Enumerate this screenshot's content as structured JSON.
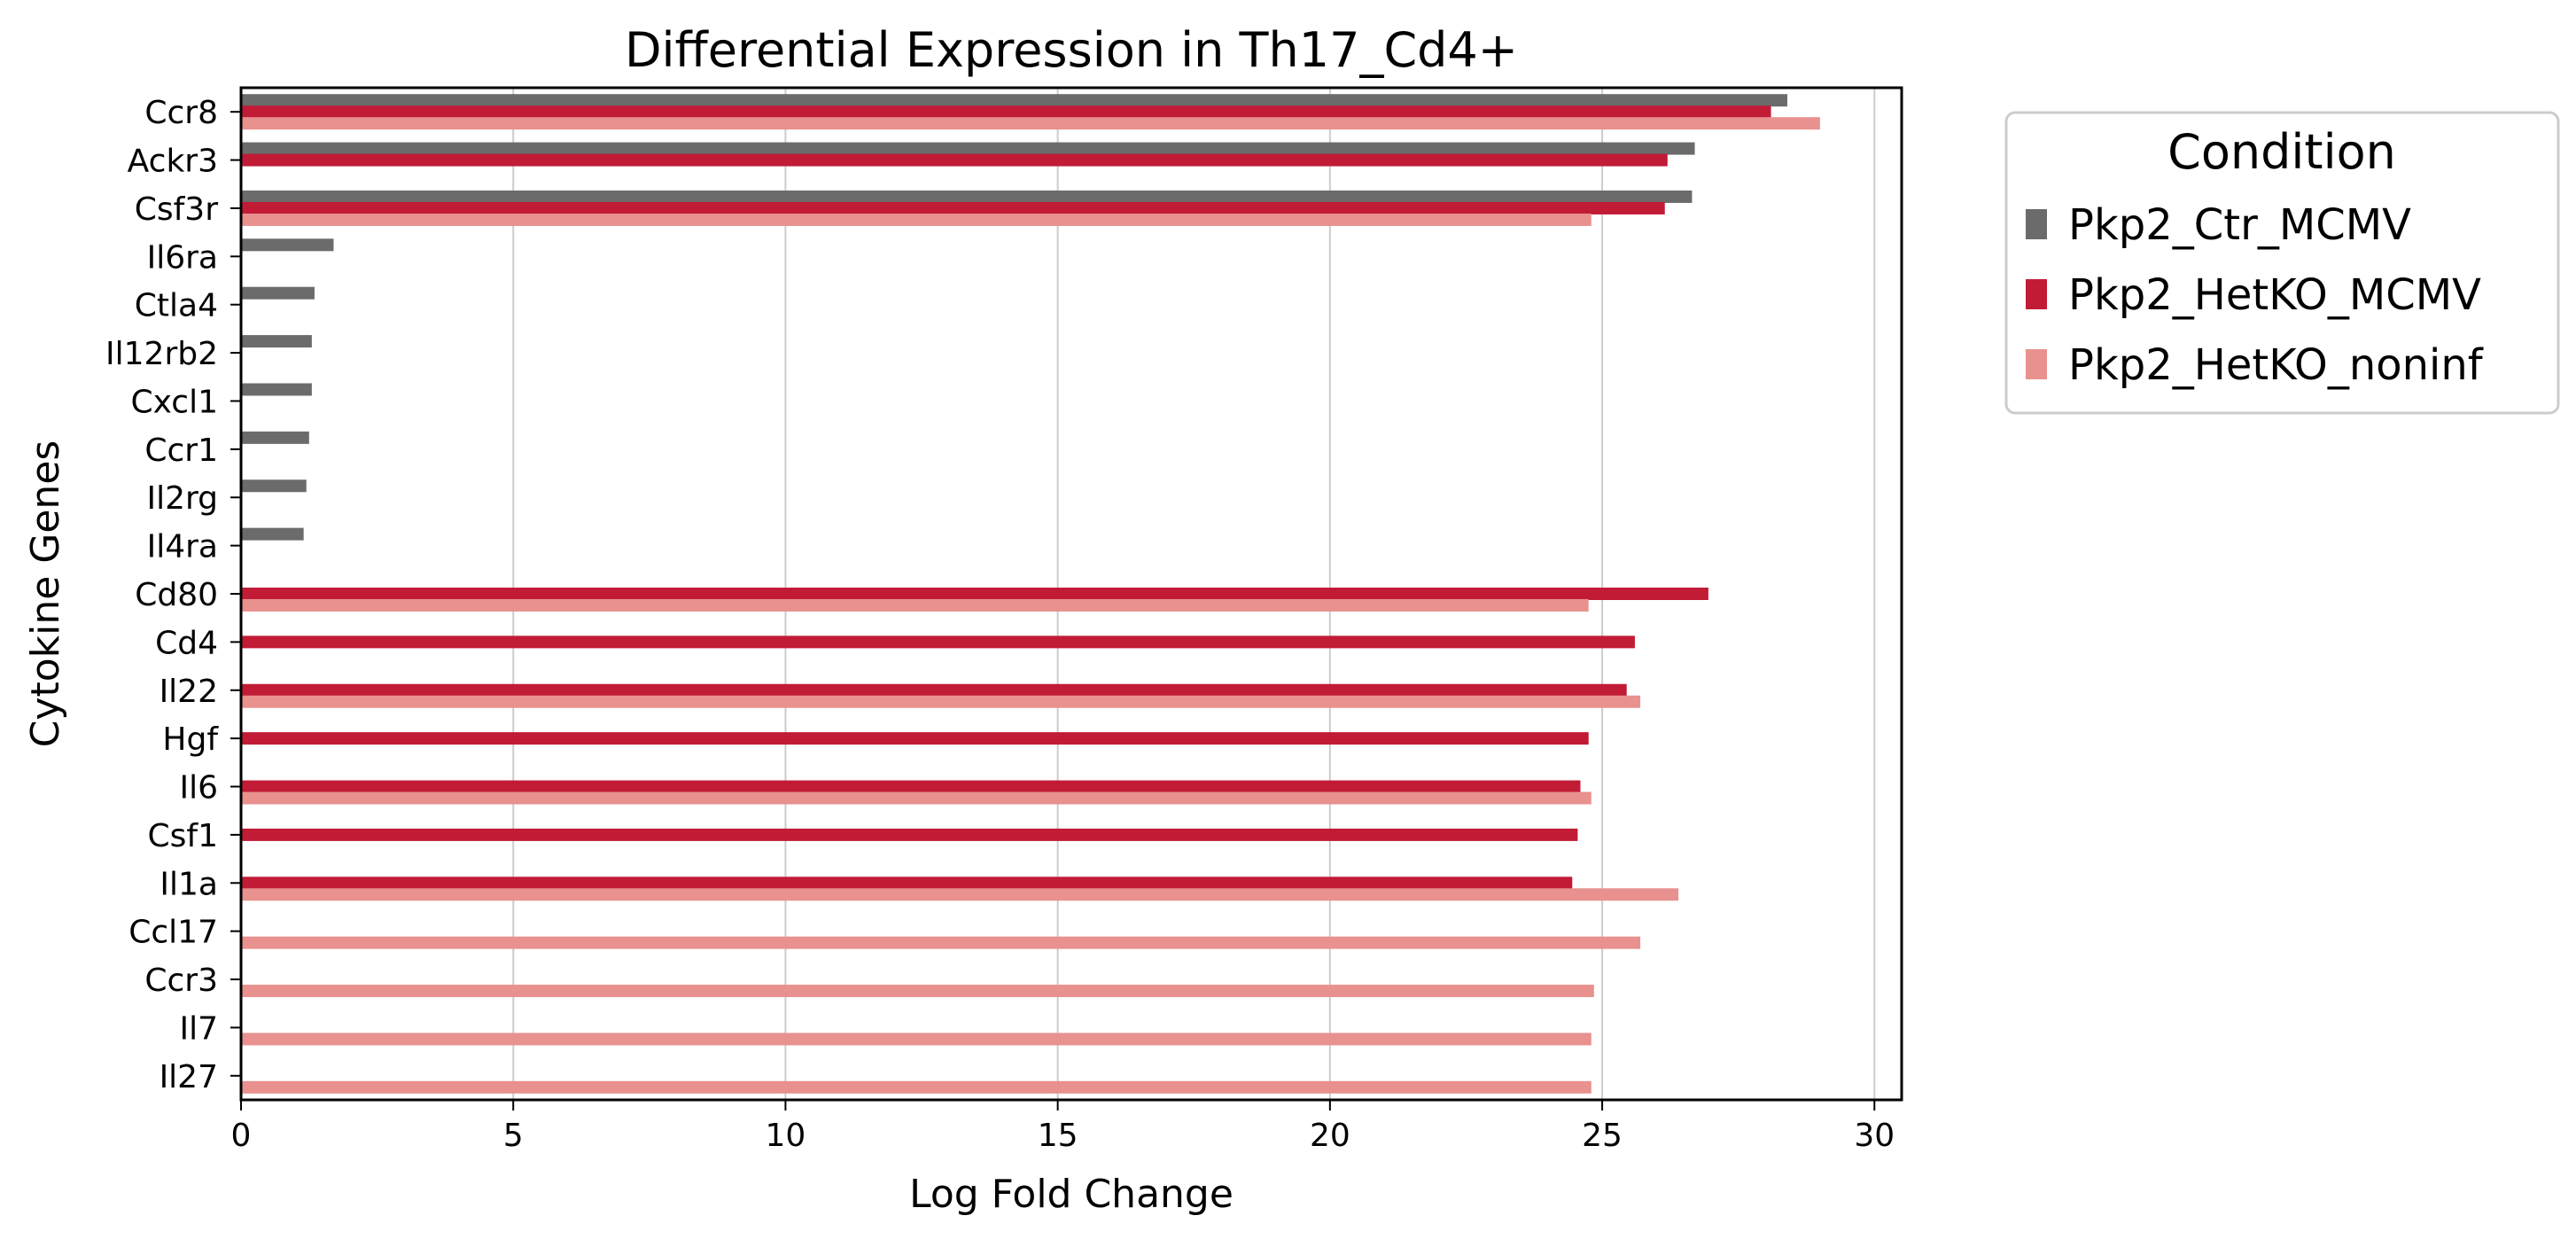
{
  "chart_data": {
    "type": "bar",
    "orientation": "horizontal",
    "title": "Differential Expression in Th17_Cd4+",
    "xlabel": "Log Fold Change",
    "ylabel": "Cytokine Genes",
    "xlim": [
      0,
      30.5
    ],
    "xticks": [
      0,
      5,
      10,
      15,
      20,
      25,
      30
    ],
    "grid": "vertical",
    "legend_placement": "outside-top-right",
    "legend_title": "Condition",
    "categories": [
      "Ccr8",
      "Ackr3",
      "Csf3r",
      "Il6ra",
      "Ctla4",
      "Il12rb2",
      "Cxcl1",
      "Ccr1",
      "Il2rg",
      "Il4ra",
      "Cd80",
      "Cd4",
      "Il22",
      "Hgf",
      "Il6",
      "Csf1",
      "Il1a",
      "Ccl17",
      "Ccr3",
      "Il7",
      "Il27"
    ],
    "series": [
      {
        "name": "Pkp2_Ctr_MCMV",
        "color": "#6b6b6b",
        "values": [
          28.4,
          26.7,
          26.65,
          1.7,
          1.35,
          1.3,
          1.3,
          1.25,
          1.2,
          1.15,
          null,
          null,
          null,
          null,
          null,
          null,
          null,
          null,
          null,
          null,
          null
        ]
      },
      {
        "name": "Pkp2_HetKO_MCMV",
        "color": "#c11b36",
        "values": [
          28.1,
          26.2,
          26.15,
          null,
          null,
          null,
          null,
          null,
          null,
          null,
          26.95,
          25.6,
          25.45,
          24.75,
          24.6,
          24.55,
          24.45,
          null,
          null,
          null,
          null
        ]
      },
      {
        "name": "Pkp2_HetKO_noninf",
        "color": "#e8918f",
        "values": [
          29.0,
          null,
          24.8,
          null,
          null,
          null,
          null,
          null,
          null,
          null,
          24.75,
          null,
          25.7,
          null,
          24.8,
          null,
          26.4,
          25.7,
          24.85,
          24.8,
          24.8
        ]
      }
    ]
  }
}
